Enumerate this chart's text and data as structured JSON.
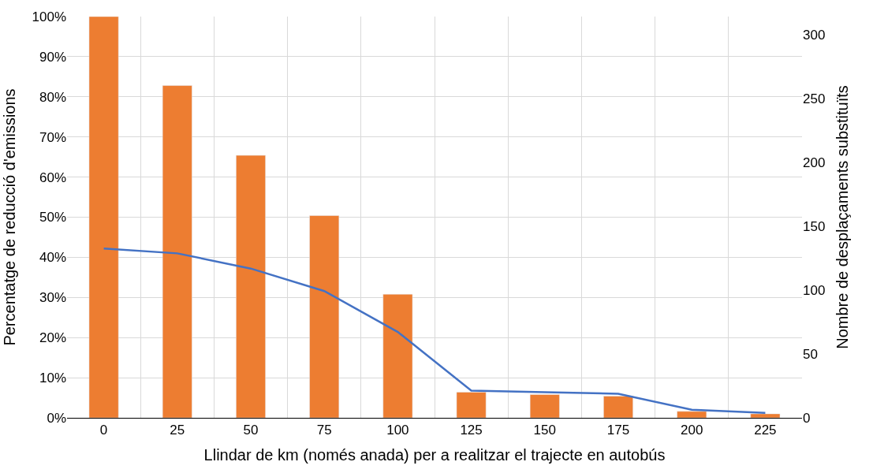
{
  "chart_data": {
    "type": "bar",
    "xlabel": "Llindar de km (només anada) per a realitzar el trajecte en autobús",
    "ylabel": "Percentatge de reducció d'emissions",
    "y2label": "Nombre de desplaçaments substituïts",
    "categories": [
      "0",
      "25",
      "50",
      "75",
      "100",
      "125",
      "150",
      "175",
      "200",
      "225"
    ],
    "series": [
      {
        "color": "#ed7d31",
        "values": [
          100,
          82.8,
          65.4,
          50.4,
          30.8,
          6.4,
          5.8,
          5.4,
          1.6,
          1.0
        ]
      },
      {
        "type": "line",
        "axis": "y2",
        "color": "#4472c4",
        "values": [
          132.5,
          128.7,
          116.8,
          99.2,
          67.2,
          21.3,
          20,
          18.8,
          6.3,
          3.8
        ]
      }
    ],
    "ylim": [
      0,
      100
    ],
    "yticks": [
      {
        "value": 0,
        "label": "0%"
      },
      {
        "value": 10,
        "label": "10%"
      },
      {
        "value": 20,
        "label": "20%"
      },
      {
        "value": 30,
        "label": "30%"
      },
      {
        "value": 40,
        "label": "40%"
      },
      {
        "value": 50,
        "label": "50%"
      },
      {
        "value": 60,
        "label": "60%"
      },
      {
        "value": 70,
        "label": "70%"
      },
      {
        "value": 80,
        "label": "80%"
      },
      {
        "value": 90,
        "label": "90%"
      },
      {
        "value": 100,
        "label": "100%"
      }
    ],
    "y2lim": [
      0,
      314
    ],
    "y2ticks": [
      0,
      50,
      100,
      150,
      200,
      250,
      300
    ],
    "grid": true,
    "marker": "none",
    "line_style": "solid"
  }
}
